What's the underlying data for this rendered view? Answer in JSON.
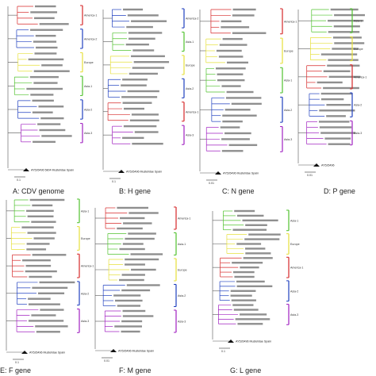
{
  "figure": {
    "colors": {
      "america1": "#d62728",
      "america2": "#1f3fbf",
      "europe": "#e6e03a",
      "asia1": "#4fc22d",
      "asia2": "#1f3fbf",
      "asia3": "#a020c0",
      "tree": "#555555"
    },
    "clade_labels": {
      "america1": "America-1",
      "america2": "America-2",
      "europe": "Europe",
      "asia1": "Asia-1",
      "asia2": "Asia-2",
      "asia3": "Asia-3"
    },
    "panels": [
      {
        "id": "A",
        "caption": "A: CDV genome",
        "clades": [
          "america1",
          "america2",
          "europe",
          "asia1",
          "asia2",
          "asia3"
        ],
        "root_label": "AY526496 5804 Mustelidae Spain",
        "scale": "0.1"
      },
      {
        "id": "B",
        "caption": "B: H gene",
        "clades": [
          "america2",
          "asia1",
          "europe",
          "asia2",
          "america1",
          "asia3"
        ],
        "root_label": "AY526496 Mustelidae Spain",
        "scale": "0.1"
      },
      {
        "id": "C",
        "caption": "C: N gene",
        "clades": [
          "america1",
          "europe",
          "asia1",
          "asia2",
          "asia3"
        ],
        "root_label": "AY526496 Mustelidae Spain",
        "scale": "0.01"
      },
      {
        "id": "D",
        "caption": "D: P gene",
        "clades": [
          "asia1",
          "europe",
          "america1",
          "asia2",
          "asia3"
        ],
        "root_label": "AY526496",
        "scale": "0.01"
      },
      {
        "id": "E",
        "caption": "E: F gene",
        "clades": [
          "asia1",
          "europe",
          "america1",
          "asia2",
          "asia3"
        ],
        "root_label": "AY526496 Mustelidae Spain",
        "scale": "0.1"
      },
      {
        "id": "F",
        "caption": "F: M gene",
        "clades": [
          "america1",
          "asia1",
          "europe",
          "asia2",
          "asia3"
        ],
        "root_label": "AY526496 Mustelidae Spain",
        "scale": "0.01"
      },
      {
        "id": "G",
        "caption": "G: L gene",
        "clades": [
          "asia1",
          "europe",
          "america1",
          "asia2",
          "asia3"
        ],
        "root_label": "AY526496 Mustelidae Spain",
        "scale": "0.1"
      }
    ]
  }
}
